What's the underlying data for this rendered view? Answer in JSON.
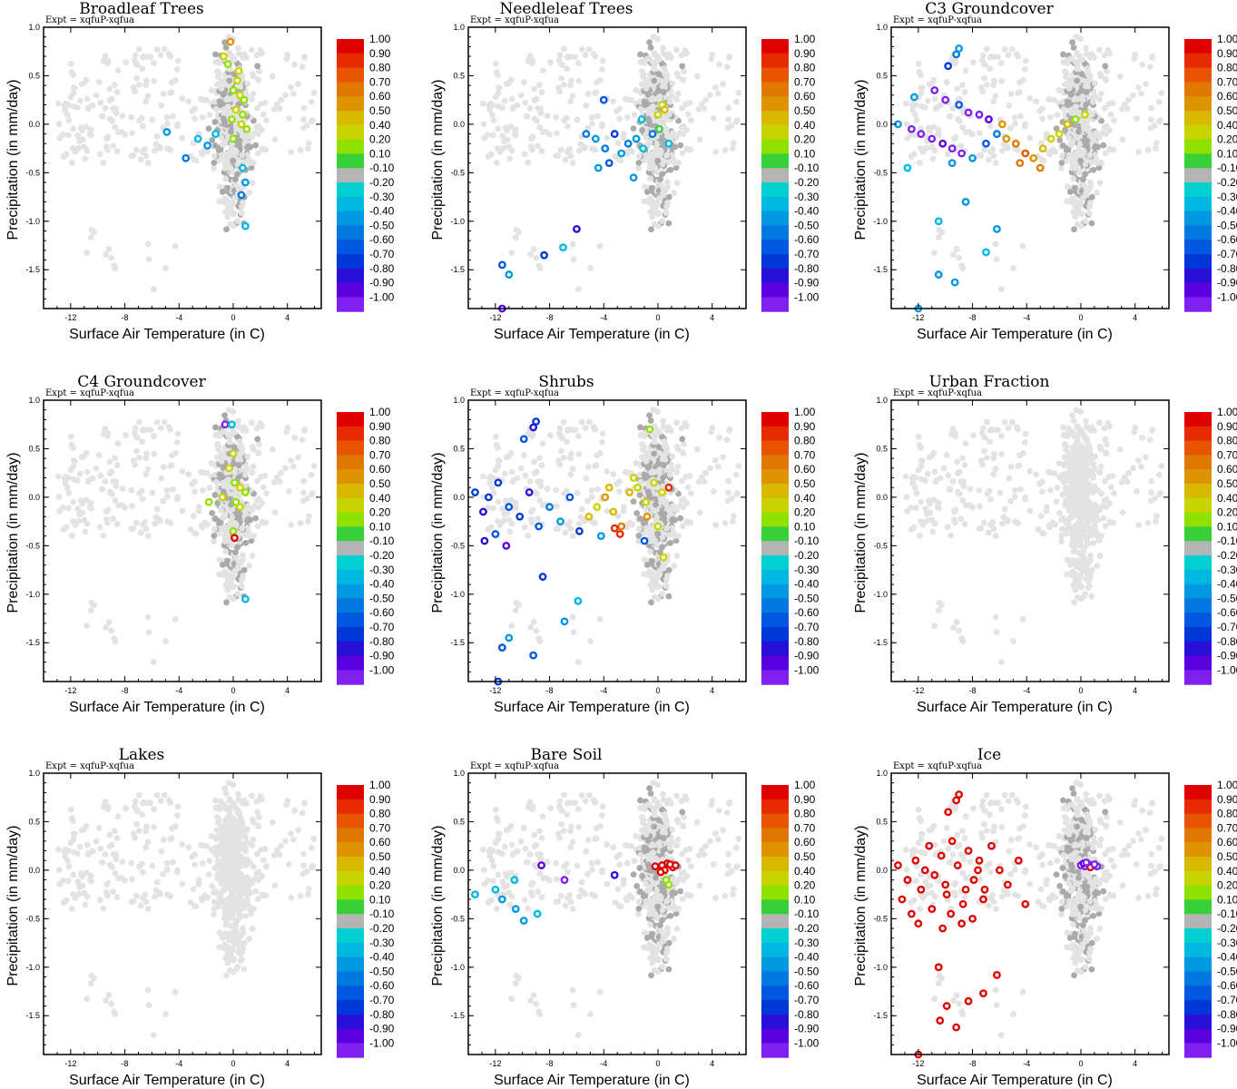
{
  "figure": {
    "expt_label": "Expt = xqfuP-xqfua",
    "xlabel": "Surface Air Temperature (in C)",
    "ylabel": "Precipitation (in mm/day)",
    "xlim": [
      -14,
      6.5
    ],
    "ylim": [
      -1.9,
      1.0
    ],
    "xticks": [
      -12,
      -8,
      -4,
      0,
      4
    ],
    "yticks": [
      1.0,
      0.5,
      0.0,
      -0.5,
      -1.0,
      -1.5
    ],
    "xtick_labels": [
      "-12",
      "-8",
      "-4",
      "0",
      "4"
    ],
    "ytick_labels": [
      "1.0",
      "0.5",
      "0.0",
      "-0.5",
      "-1.0",
      "-1.5"
    ]
  },
  "colorbar": {
    "labels": [
      "1.00",
      "0.90",
      "0.80",
      "0.70",
      "0.60",
      "0.50",
      "0.40",
      "0.20",
      "0.10",
      "-0.10",
      "-0.20",
      "-0.30",
      "-0.40",
      "-0.50",
      "-0.60",
      "-0.70",
      "-0.80",
      "-0.90",
      "-1.00"
    ],
    "colors": [
      "#e00000",
      "#e82a00",
      "#e85400",
      "#e07800",
      "#de9400",
      "#d8b800",
      "#c8d400",
      "#90e000",
      "#38d038",
      "#b4b4b4",
      "#00d0d0",
      "#00b8e0",
      "#0098e0",
      "#0078e0",
      "#0058e0",
      "#0038d8",
      "#2810d8",
      "#5a00e0",
      "#8020f0"
    ]
  },
  "background_color": "#e3e3e3",
  "neutral_color": "#aaaaaa",
  "chart_data": [
    {
      "type": "scatter",
      "title": "Broadleaf Trees",
      "highlight": [
        [
          -0.2,
          0.85,
          0.55
        ],
        [
          -0.7,
          0.7,
          0.4
        ],
        [
          -0.4,
          0.62,
          0.2
        ],
        [
          0.3,
          0.45,
          0.4
        ],
        [
          0.0,
          0.35,
          0.2
        ],
        [
          0.5,
          0.3,
          0.4
        ],
        [
          0.8,
          0.25,
          0.2
        ],
        [
          0.2,
          0.15,
          0.4
        ],
        [
          0.7,
          0.1,
          0.2
        ],
        [
          -0.1,
          0.05,
          0.2
        ],
        [
          0.6,
          0.0,
          0.4
        ],
        [
          1.0,
          -0.05,
          0.2
        ],
        [
          -1.3,
          -0.1,
          -0.2
        ],
        [
          -2.6,
          -0.15,
          -0.2
        ],
        [
          -4.9,
          -0.08,
          -0.3
        ],
        [
          -1.9,
          -0.22,
          -0.3
        ],
        [
          -3.5,
          -0.35,
          -0.4
        ],
        [
          0.7,
          -0.45,
          -0.2
        ],
        [
          0.9,
          -0.6,
          -0.3
        ],
        [
          0.6,
          -0.73,
          -0.4
        ],
        [
          0.9,
          -1.05,
          -0.2
        ],
        [
          0.0,
          -0.15,
          0.2
        ],
        [
          0.4,
          0.55,
          0.3
        ]
      ]
    },
    {
      "type": "scatter",
      "title": "Needleleaf Trees",
      "highlight": [
        [
          -4.0,
          0.25,
          -0.5
        ],
        [
          -5.3,
          -0.1,
          -0.4
        ],
        [
          -4.6,
          -0.15,
          -0.3
        ],
        [
          -3.9,
          -0.25,
          -0.4
        ],
        [
          -3.2,
          -0.1,
          -0.6
        ],
        [
          -2.7,
          -0.3,
          -0.3
        ],
        [
          -2.2,
          -0.2,
          -0.4
        ],
        [
          -1.6,
          -0.15,
          -0.3
        ],
        [
          -1.1,
          -0.25,
          -0.2
        ],
        [
          -0.4,
          -0.1,
          -0.4
        ],
        [
          0.3,
          0.2,
          0.4
        ],
        [
          0.5,
          0.15,
          0.5
        ],
        [
          0.1,
          -0.05,
          0.1
        ],
        [
          0.8,
          -0.2,
          -0.2
        ],
        [
          -4.4,
          -0.45,
          -0.3
        ],
        [
          -3.6,
          -0.4,
          -0.5
        ],
        [
          -1.8,
          -0.55,
          -0.3
        ],
        [
          -11.5,
          -1.45,
          -0.5
        ],
        [
          -11.0,
          -1.55,
          -0.3
        ],
        [
          -8.4,
          -1.35,
          -0.6
        ],
        [
          -7.0,
          -1.27,
          -0.2
        ],
        [
          -6.0,
          -1.08,
          -0.7
        ],
        [
          -11.5,
          -1.9,
          -0.8
        ],
        [
          -1.2,
          0.05,
          -0.2
        ],
        [
          0.0,
          0.1,
          0.3
        ]
      ]
    },
    {
      "type": "scatter",
      "title": "C3 Groundcover",
      "highlight": [
        [
          -9.2,
          0.72,
          -0.4
        ],
        [
          -9.0,
          0.78,
          -0.3
        ],
        [
          -9.8,
          0.6,
          -0.6
        ],
        [
          -12.3,
          0.28,
          -0.3
        ],
        [
          -10.8,
          0.35,
          -0.9
        ],
        [
          -10.0,
          0.25,
          -0.9
        ],
        [
          -9.0,
          0.2,
          -0.5
        ],
        [
          -8.3,
          0.12,
          -1.0
        ],
        [
          -7.5,
          0.1,
          -0.9
        ],
        [
          -6.8,
          0.05,
          -0.8
        ],
        [
          -13.5,
          0.0,
          -0.3
        ],
        [
          -12.5,
          -0.05,
          -0.9
        ],
        [
          -11.8,
          -0.1,
          -0.95
        ],
        [
          -11.0,
          -0.15,
          -0.9
        ],
        [
          -10.2,
          -0.2,
          -0.8
        ],
        [
          -9.5,
          -0.25,
          -1.0
        ],
        [
          -8.8,
          -0.3,
          -0.9
        ],
        [
          -8.0,
          -0.35,
          -0.3
        ],
        [
          -7.0,
          -0.2,
          -0.5
        ],
        [
          -6.2,
          -0.1,
          -0.4
        ],
        [
          -5.5,
          -0.15,
          0.6
        ],
        [
          -4.8,
          -0.2,
          0.7
        ],
        [
          -4.1,
          -0.3,
          0.8
        ],
        [
          -3.5,
          -0.35,
          0.6
        ],
        [
          -2.8,
          -0.25,
          0.5
        ],
        [
          -2.2,
          -0.15,
          0.3
        ],
        [
          -1.6,
          -0.1,
          0.4
        ],
        [
          -1.0,
          0.0,
          0.45
        ],
        [
          -0.4,
          0.05,
          0.2
        ],
        [
          0.3,
          0.1,
          0.4
        ],
        [
          -4.5,
          -0.4,
          0.7
        ],
        [
          -3.0,
          -0.45,
          0.7
        ],
        [
          -9.5,
          -0.4,
          -0.3
        ],
        [
          -12.8,
          -0.45,
          -0.2
        ],
        [
          -10.5,
          -1.0,
          -0.2
        ],
        [
          -10.5,
          -1.55,
          -0.3
        ],
        [
          -9.3,
          -1.63,
          -0.3
        ],
        [
          -7.0,
          -1.32,
          -0.2
        ],
        [
          -6.2,
          -1.08,
          -0.3
        ],
        [
          -12.0,
          -1.9,
          -0.3
        ],
        [
          -8.5,
          -0.8,
          -0.3
        ],
        [
          -5.8,
          0.0,
          0.6
        ]
      ]
    },
    {
      "type": "scatter",
      "title": "C4 Groundcover",
      "highlight": [
        [
          -0.6,
          0.75,
          -0.9
        ],
        [
          -0.1,
          0.75,
          -0.2
        ],
        [
          0.0,
          0.45,
          0.3
        ],
        [
          -0.3,
          0.3,
          0.4
        ],
        [
          0.1,
          0.15,
          0.2
        ],
        [
          0.5,
          0.1,
          0.3
        ],
        [
          0.9,
          0.05,
          0.2
        ],
        [
          -0.8,
          0.0,
          0.3
        ],
        [
          0.2,
          -0.05,
          0.2
        ],
        [
          0.5,
          -0.1,
          0.4
        ],
        [
          0.0,
          -0.35,
          0.2
        ],
        [
          0.1,
          -0.42,
          0.95
        ],
        [
          0.9,
          -1.05,
          -0.2
        ],
        [
          -1.8,
          -0.05,
          0.15
        ]
      ]
    },
    {
      "type": "scatter",
      "title": "Shrubs",
      "highlight": [
        [
          -9.2,
          0.72,
          -0.7
        ],
        [
          -9.0,
          0.78,
          -0.6
        ],
        [
          -9.9,
          0.6,
          -0.5
        ],
        [
          -13.5,
          0.05,
          -0.6
        ],
        [
          -12.9,
          -0.15,
          -0.7
        ],
        [
          -12.5,
          0.0,
          -0.6
        ],
        [
          -11.8,
          0.15,
          -0.6
        ],
        [
          -11.0,
          -0.1,
          -0.5
        ],
        [
          -10.2,
          -0.2,
          -0.6
        ],
        [
          -9.5,
          0.05,
          -0.7
        ],
        [
          -8.8,
          -0.3,
          -0.5
        ],
        [
          -8.0,
          -0.1,
          -0.4
        ],
        [
          -7.2,
          -0.25,
          -0.3
        ],
        [
          -6.5,
          0.0,
          -0.5
        ],
        [
          -5.8,
          -0.35,
          -0.6
        ],
        [
          -5.1,
          -0.2,
          0.5
        ],
        [
          -4.5,
          -0.1,
          0.4
        ],
        [
          -3.9,
          0.0,
          0.6
        ],
        [
          -3.3,
          -0.15,
          0.5
        ],
        [
          -2.7,
          -0.3,
          0.7
        ],
        [
          -2.1,
          0.05,
          0.5
        ],
        [
          -1.5,
          0.1,
          0.3
        ],
        [
          -0.9,
          -0.05,
          0.4
        ],
        [
          -0.3,
          0.15,
          0.3
        ],
        [
          0.3,
          0.05,
          0.4
        ],
        [
          0.8,
          0.1,
          0.9
        ],
        [
          -2.8,
          -0.38,
          0.9
        ],
        [
          -3.2,
          -0.32,
          0.9
        ],
        [
          -4.2,
          -0.4,
          -0.3
        ],
        [
          -1.0,
          -0.45,
          -0.5
        ],
        [
          0.4,
          -0.62,
          0.3
        ],
        [
          0.0,
          -0.3,
          0.4
        ],
        [
          -0.6,
          0.7,
          0.2
        ],
        [
          -11.5,
          -1.55,
          -0.5
        ],
        [
          -11.0,
          -1.45,
          -0.3
        ],
        [
          -9.2,
          -1.63,
          -0.5
        ],
        [
          -6.9,
          -1.28,
          -0.3
        ],
        [
          -5.9,
          -1.07,
          -0.2
        ],
        [
          -11.8,
          -1.9,
          -0.6
        ],
        [
          -8.5,
          -0.82,
          -0.6
        ],
        [
          -12.8,
          -0.45,
          -0.7
        ],
        [
          -12.0,
          -0.38,
          -0.5
        ],
        [
          -11.2,
          -0.5,
          -0.8
        ],
        [
          -1.8,
          0.2,
          0.4
        ],
        [
          -3.6,
          0.1,
          0.5
        ],
        [
          -0.8,
          -0.2,
          0.6
        ]
      ]
    },
    {
      "type": "scatter",
      "title": "Urban Fraction",
      "highlight": []
    },
    {
      "type": "scatter",
      "title": "Lakes",
      "highlight": []
    },
    {
      "type": "scatter",
      "title": "Bare Soil",
      "highlight": [
        [
          0.3,
          0.05,
          0.95
        ],
        [
          0.7,
          0.07,
          0.95
        ],
        [
          1.1,
          0.03,
          0.95
        ],
        [
          -0.2,
          0.04,
          0.95
        ],
        [
          0.5,
          0.0,
          0.95
        ],
        [
          0.9,
          0.06,
          0.95
        ],
        [
          1.3,
          0.05,
          0.95
        ],
        [
          0.2,
          -0.02,
          0.95
        ],
        [
          0.6,
          -0.1,
          0.2
        ],
        [
          0.8,
          -0.15,
          0.2
        ],
        [
          -12.0,
          -0.2,
          -0.2
        ],
        [
          -11.5,
          -0.3,
          -0.3
        ],
        [
          -10.5,
          -0.4,
          -0.3
        ],
        [
          -9.9,
          -0.52,
          -0.3
        ],
        [
          -8.9,
          -0.45,
          -0.2
        ],
        [
          -10.6,
          -0.1,
          -0.2
        ],
        [
          -6.9,
          -0.1,
          -0.95
        ],
        [
          -8.6,
          0.05,
          -0.8
        ],
        [
          -13.5,
          -0.25,
          -0.2
        ],
        [
          -3.2,
          -0.05,
          -0.7
        ]
      ]
    },
    {
      "type": "scatter",
      "title": "Ice",
      "highlight": [
        [
          -9.2,
          0.72,
          0.95
        ],
        [
          -9.0,
          0.78,
          0.95
        ],
        [
          -9.8,
          0.6,
          0.95
        ],
        [
          -13.5,
          0.05,
          0.95
        ],
        [
          -12.8,
          -0.1,
          0.95
        ],
        [
          -12.2,
          0.1,
          0.95
        ],
        [
          -11.8,
          -0.2,
          0.95
        ],
        [
          -11.2,
          0.25,
          0.95
        ],
        [
          -10.8,
          -0.05,
          0.95
        ],
        [
          -10.3,
          0.15,
          0.95
        ],
        [
          -9.9,
          -0.25,
          0.95
        ],
        [
          -9.5,
          0.3,
          0.95
        ],
        [
          -9.1,
          0.05,
          0.95
        ],
        [
          -8.7,
          -0.35,
          0.95
        ],
        [
          -8.3,
          0.2,
          0.95
        ],
        [
          -7.9,
          -0.1,
          0.95
        ],
        [
          -7.5,
          0.1,
          0.95
        ],
        [
          -7.1,
          -0.2,
          0.95
        ],
        [
          -6.6,
          0.25,
          0.95
        ],
        [
          -6.0,
          0.0,
          0.95
        ],
        [
          -5.4,
          -0.15,
          0.95
        ],
        [
          -4.6,
          0.1,
          0.95
        ],
        [
          -4.1,
          -0.35,
          0.95
        ],
        [
          -12.5,
          -0.45,
          0.95
        ],
        [
          -11.0,
          -0.4,
          0.95
        ],
        [
          -10.2,
          -0.6,
          0.95
        ],
        [
          -9.6,
          -0.45,
          0.95
        ],
        [
          -8.8,
          -0.55,
          0.95
        ],
        [
          -8.0,
          -0.5,
          0.95
        ],
        [
          -7.2,
          -0.3,
          0.95
        ],
        [
          -13.2,
          -0.3,
          0.95
        ],
        [
          -12.0,
          -0.55,
          0.95
        ],
        [
          -10.5,
          -1.0,
          0.95
        ],
        [
          -10.4,
          -1.55,
          0.95
        ],
        [
          -9.2,
          -1.62,
          0.95
        ],
        [
          -8.3,
          -1.35,
          0.95
        ],
        [
          -7.2,
          -1.27,
          0.95
        ],
        [
          -6.2,
          -1.08,
          0.95
        ],
        [
          -12.0,
          -1.9,
          0.95
        ],
        [
          -9.9,
          -1.4,
          0.95
        ],
        [
          -11.5,
          0.0,
          0.95
        ],
        [
          -10.0,
          -0.15,
          0.95
        ],
        [
          -8.5,
          -0.2,
          0.95
        ],
        [
          -7.6,
          0.0,
          0.95
        ],
        [
          0.0,
          0.05,
          -0.9
        ],
        [
          0.3,
          0.04,
          -0.95
        ],
        [
          0.6,
          0.06,
          -0.9
        ],
        [
          0.9,
          0.05,
          -0.95
        ],
        [
          1.2,
          0.04,
          -0.9
        ],
        [
          0.2,
          0.07,
          -0.8
        ],
        [
          0.7,
          0.03,
          0.95
        ],
        [
          0.4,
          0.08,
          -0.9
        ],
        [
          1.0,
          0.06,
          -0.9
        ]
      ]
    }
  ]
}
